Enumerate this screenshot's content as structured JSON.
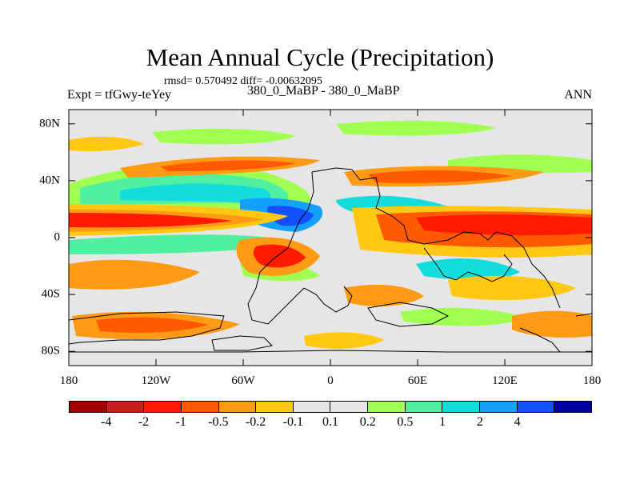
{
  "title": "Mean Annual Cycle (Precipitation)",
  "stats": "rmsd= 0.570492 diff= -0.00632095",
  "left_label": "Expt = tfGwy-teYey",
  "center_label": "380_0_MaBP - 380_0_MaBP",
  "right_label": "ANN",
  "lat_ticks": [
    {
      "label": "80N",
      "value": 80
    },
    {
      "label": "40N",
      "value": 40
    },
    {
      "label": "0",
      "value": 0
    },
    {
      "label": "40S",
      "value": -40
    },
    {
      "label": "80S",
      "value": -80
    }
  ],
  "lon_ticks": [
    {
      "label": "180",
      "value": -180
    },
    {
      "label": "120W",
      "value": -120
    },
    {
      "label": "60W",
      "value": -60
    },
    {
      "label": "0",
      "value": 0
    },
    {
      "label": "60E",
      "value": 60
    },
    {
      "label": "120E",
      "value": 120
    },
    {
      "label": "180",
      "value": 180
    }
  ],
  "colorbar": {
    "colors": [
      "#a40000",
      "#c81e1e",
      "#ff1a00",
      "#ff5a00",
      "#ff9a14",
      "#ffc814",
      "#e6e6e6",
      "#e6e6e6",
      "#a0ff50",
      "#50f0a0",
      "#14dcdc",
      "#14a0ff",
      "#1450ff",
      "#0000a0"
    ],
    "labels": [
      "-4",
      "-2",
      "-1",
      "-0.5",
      "-0.2",
      "-0.1",
      "0.1",
      "0.2",
      "0.5",
      "1",
      "2",
      "4"
    ]
  },
  "colors": {
    "background": "#e6e6e6",
    "coastline": "#000000"
  }
}
